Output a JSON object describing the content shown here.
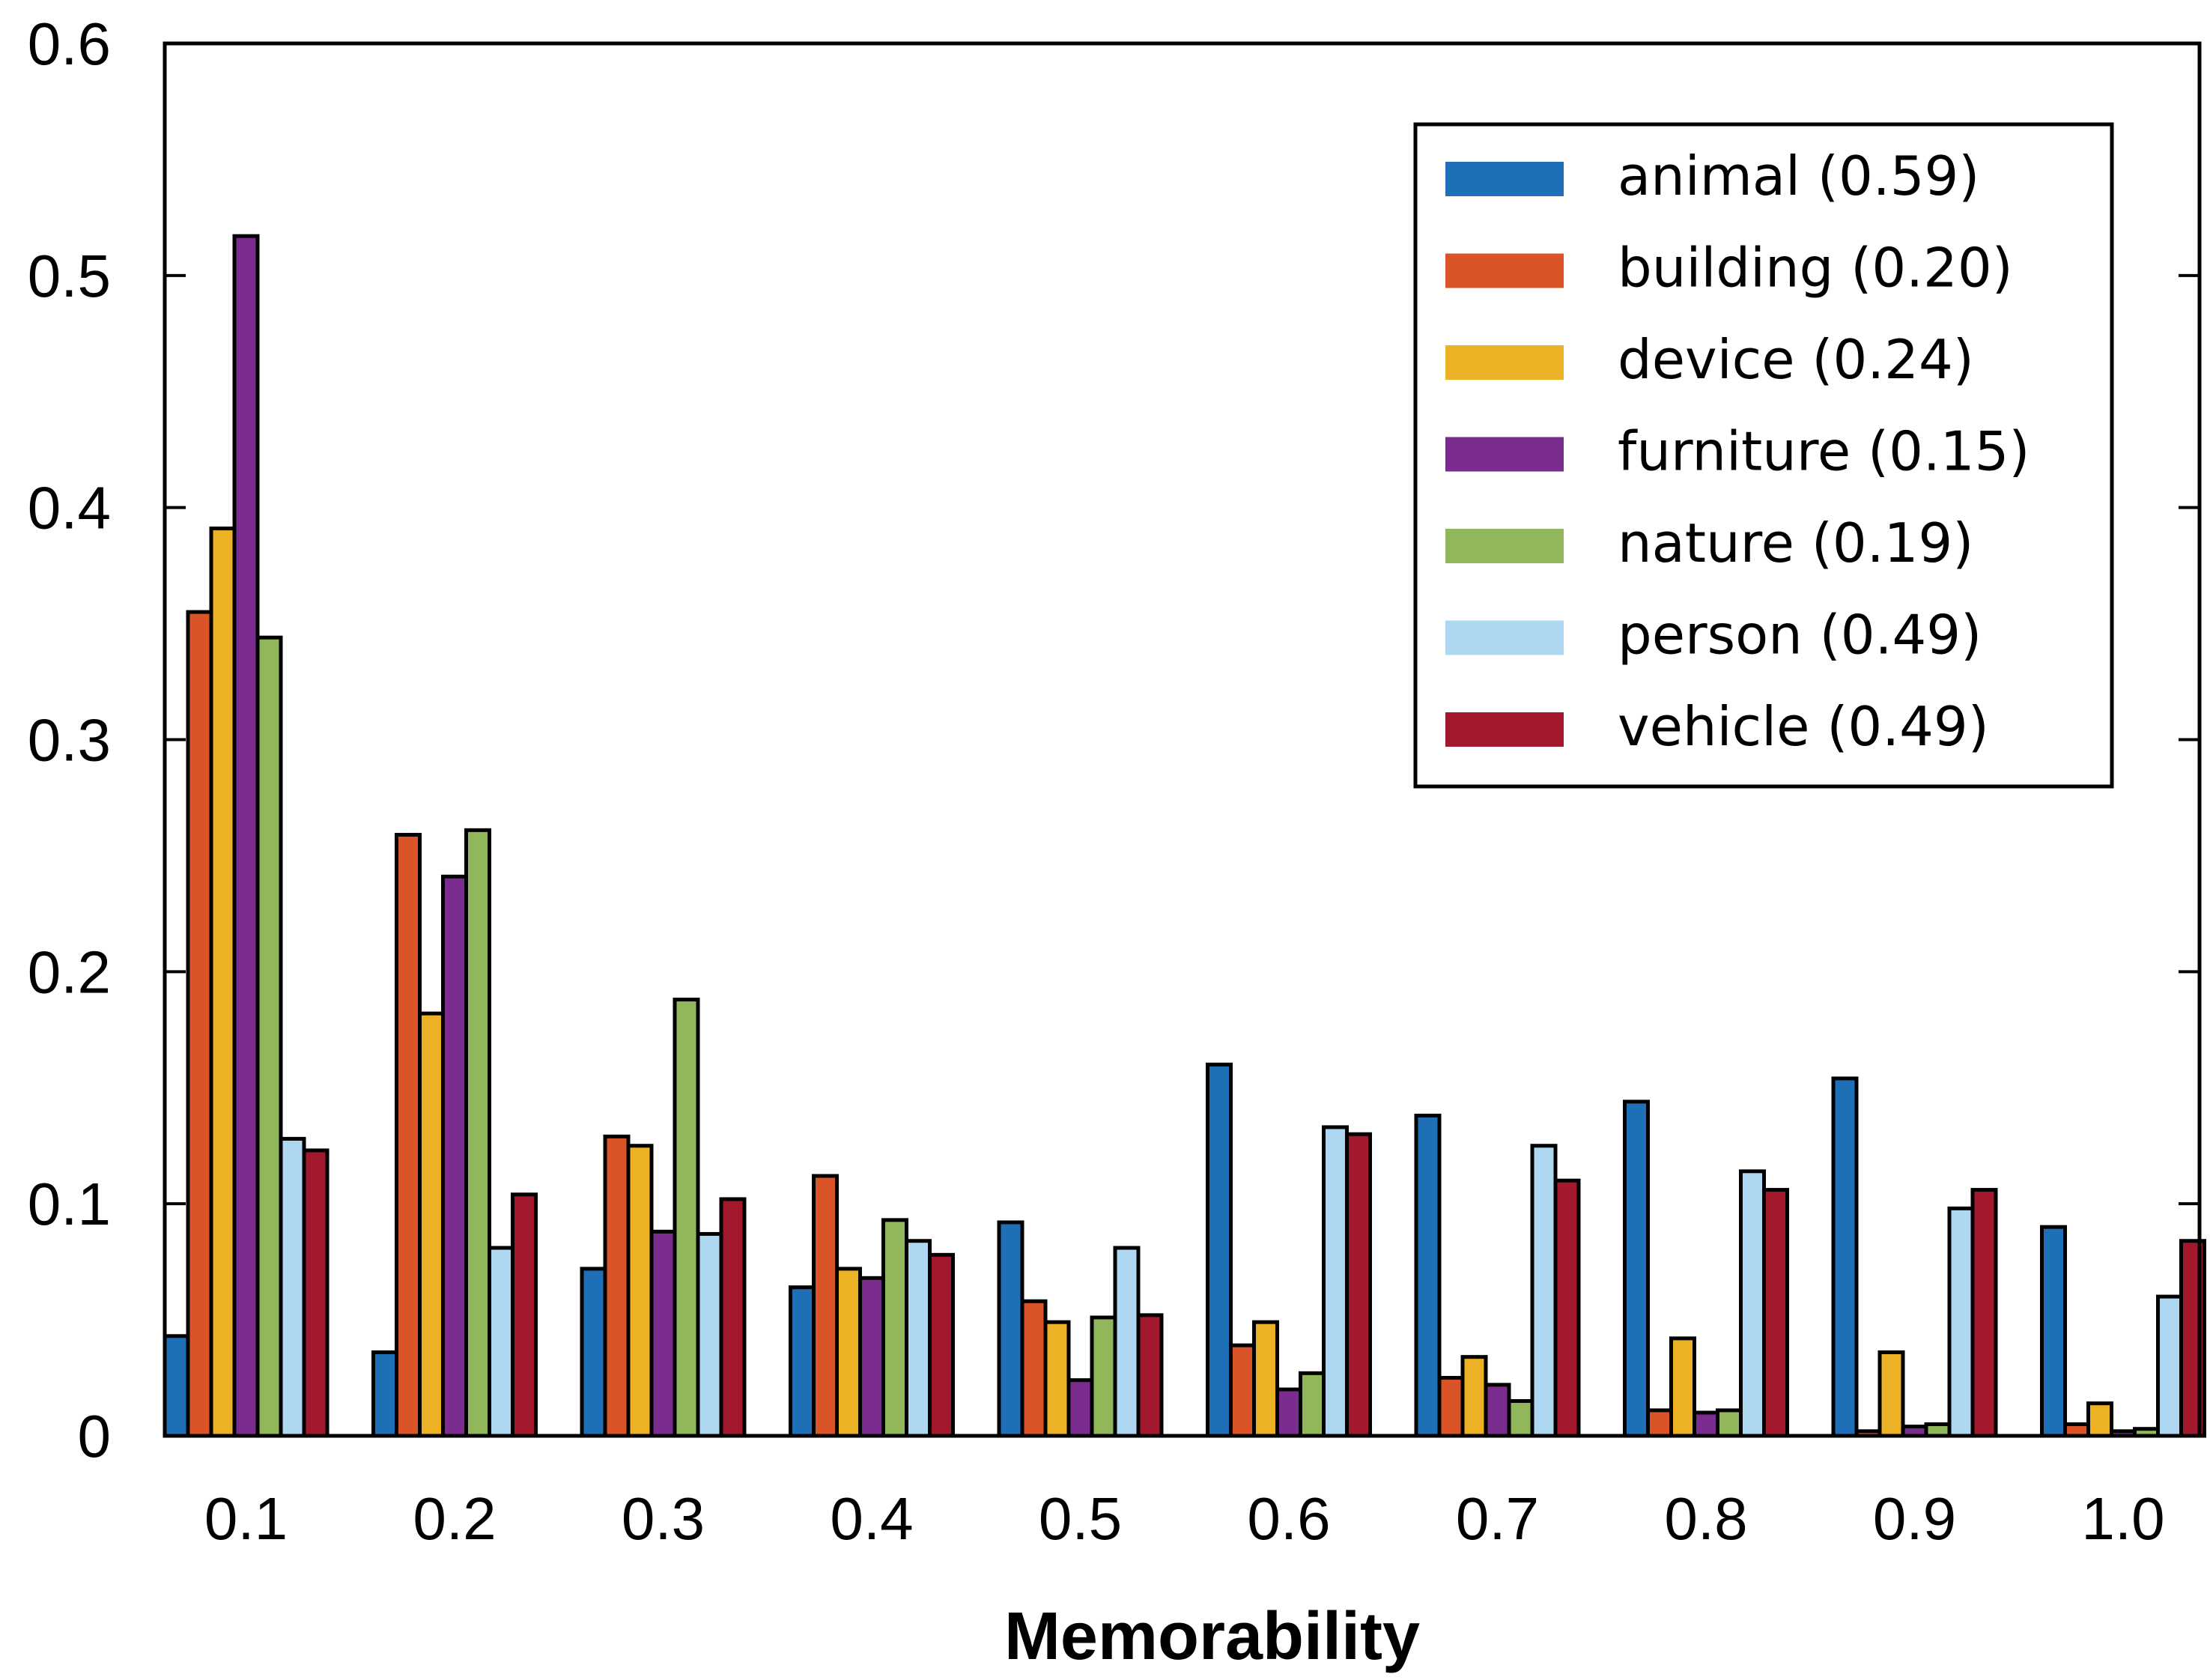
{
  "chart_data": {
    "type": "bar",
    "title": "",
    "xlabel": "Memorability",
    "ylabel": "",
    "ylim": [
      0,
      0.6
    ],
    "yticks": [
      "0",
      "0.1",
      "0.2",
      "0.3",
      "0.4",
      "0.5",
      "0.6"
    ],
    "categories": [
      "0.1",
      "0.2",
      "0.3",
      "0.4",
      "0.5",
      "0.6",
      "0.7",
      "0.8",
      "0.9",
      "1.0"
    ],
    "legend_position": "top-right",
    "grid": false,
    "series": [
      {
        "name": "animal (0.59)",
        "color": "#1f6fb6",
        "values": [
          0.043,
          0.036,
          0.072,
          0.064,
          0.092,
          0.16,
          0.138,
          0.144,
          0.154,
          0.09
        ]
      },
      {
        "name": "building (0.20)",
        "color": "#db5427",
        "values": [
          0.355,
          0.259,
          0.129,
          0.112,
          0.058,
          0.039,
          0.025,
          0.011,
          0.002,
          0.005
        ]
      },
      {
        "name": "device (0.24)",
        "color": "#ecb124",
        "values": [
          0.391,
          0.182,
          0.125,
          0.072,
          0.049,
          0.049,
          0.034,
          0.042,
          0.036,
          0.014
        ]
      },
      {
        "name": "furniture (0.15)",
        "color": "#7b2d8f",
        "values": [
          0.517,
          0.241,
          0.088,
          0.068,
          0.024,
          0.02,
          0.022,
          0.01,
          0.004,
          0.002
        ]
      },
      {
        "name": "nature (0.19)",
        "color": "#92b75b",
        "values": [
          0.344,
          0.261,
          0.188,
          0.093,
          0.051,
          0.027,
          0.015,
          0.011,
          0.005,
          0.003
        ]
      },
      {
        "name": "person (0.49)",
        "color": "#aed8f1",
        "values": [
          0.128,
          0.081,
          0.087,
          0.084,
          0.081,
          0.133,
          0.125,
          0.114,
          0.098,
          0.06
        ]
      },
      {
        "name": "vehicle (0.49)",
        "color": "#a2192e",
        "values": [
          0.123,
          0.104,
          0.102,
          0.078,
          0.052,
          0.13,
          0.11,
          0.106,
          0.106,
          0.084
        ]
      }
    ]
  }
}
